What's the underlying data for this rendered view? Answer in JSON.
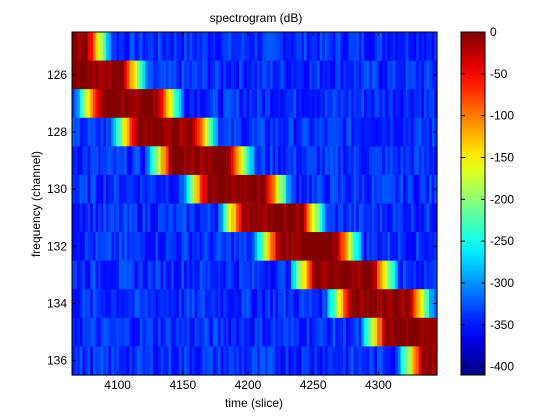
{
  "chart_data": {
    "type": "heatmap",
    "title": "spectrogram (dB)",
    "xlabel": "time (slice)",
    "ylabel": "frequency (channel)",
    "xlim": [
      4065,
      4345
    ],
    "ylim": [
      124.5,
      136.5
    ],
    "x_ticks": [
      4100,
      4150,
      4200,
      4250,
      4300
    ],
    "x_tick_labels": [
      "4100",
      "4150",
      "4200",
      "4250",
      "4300"
    ],
    "y_ticks": [
      126,
      128,
      130,
      132,
      134,
      136
    ],
    "y_tick_labels": [
      "126",
      "128",
      "130",
      "132",
      "134",
      "136"
    ],
    "channels": [
      125,
      126,
      127,
      128,
      129,
      130,
      131,
      132,
      133,
      134,
      135,
      136
    ],
    "colorbar": {
      "clim": [
        -410,
        0
      ],
      "ticks": [
        0,
        -50,
        -100,
        -150,
        -200,
        -250,
        -300,
        -350,
        -400
      ],
      "tick_labels": [
        "0",
        "-50",
        "-100",
        "-150",
        "-200",
        "-250",
        "-300",
        "-350",
        "-400"
      ],
      "colormap": "jet"
    },
    "background_db": -340,
    "sweep": {
      "start_time": 4065,
      "start_channel": 124.6,
      "end_time": 4345,
      "end_channel": 134.8,
      "band_width_channels": 1.6,
      "floor_db": -340,
      "peak_db": 0
    }
  }
}
